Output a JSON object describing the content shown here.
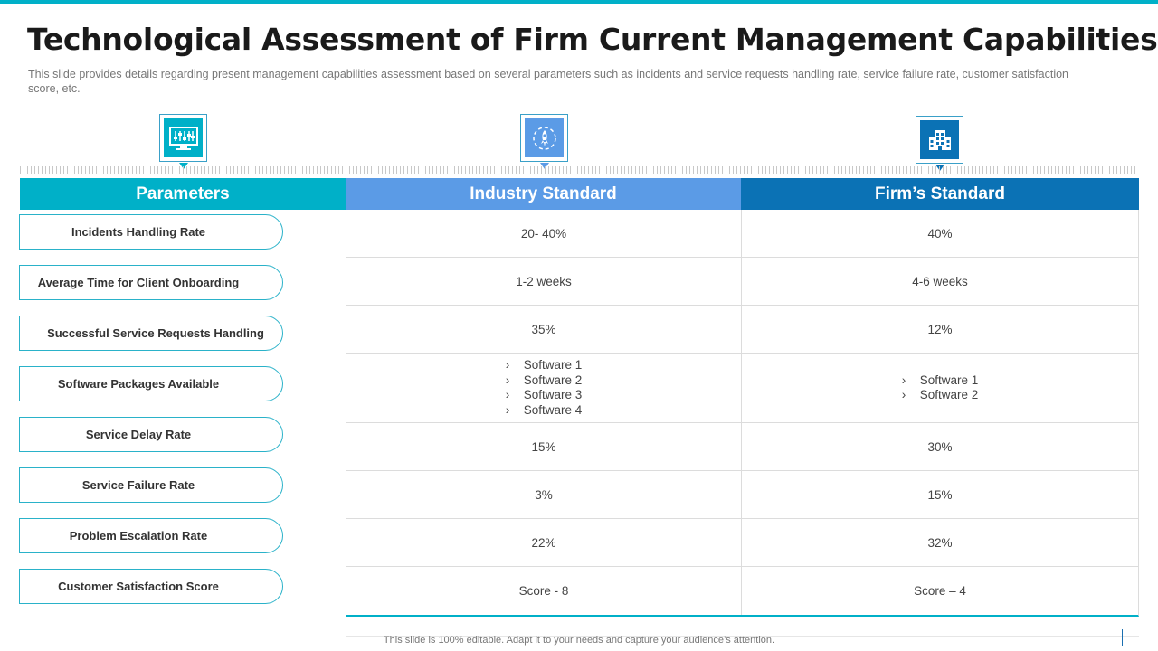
{
  "slide": {
    "title": "Technological Assessment of Firm Current Management Capabilities",
    "subtitle": "This slide provides details regarding present management capabilities assessment based on several parameters such as incidents and service requests handling rate, service failure rate, customer satisfaction score, etc.",
    "footer": "This slide is 100% editable. Adapt it to your needs and capture your audience’s attention."
  },
  "columns": {
    "parameters": {
      "label": "Parameters",
      "color": "#00b0c8",
      "icon": "monitor-sliders-icon"
    },
    "industry": {
      "label": "Industry Standard",
      "color": "#5b9be6",
      "icon": "rocket-gear-icon"
    },
    "firm": {
      "label": "Firm’s Standard",
      "color": "#0b72b5",
      "icon": "office-building-icon"
    }
  },
  "rows": [
    {
      "parameter": "Incidents Handling Rate",
      "industry": "20- 40%",
      "firm": "40%"
    },
    {
      "parameter": "Average Time for Client Onboarding",
      "industry": "1-2 weeks",
      "firm": "4-6 weeks"
    },
    {
      "parameter": "Successful  Service Requests  Handling",
      "industry": "35%",
      "firm": "12%"
    },
    {
      "parameter": "Software Packages Available",
      "industry_list": [
        "Software 1",
        "Software 2",
        "Software 3",
        "Software 4"
      ],
      "firm_list": [
        "Software 1",
        "Software 2"
      ]
    },
    {
      "parameter": "Service Delay Rate",
      "industry": "15%",
      "firm": "30%"
    },
    {
      "parameter": "Service Failure Rate",
      "industry": "3%",
      "firm": "15%"
    },
    {
      "parameter": "Problem Escalation Rate",
      "industry": "22%",
      "firm": "32%"
    },
    {
      "parameter": "Customer  Satisfaction  Score",
      "industry": "Score - 8",
      "firm": "Score – 4"
    }
  ]
}
